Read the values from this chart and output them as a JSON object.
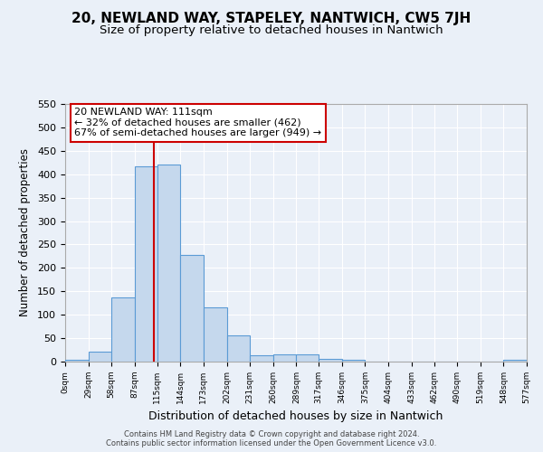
{
  "title": "20, NEWLAND WAY, STAPELEY, NANTWICH, CW5 7JH",
  "subtitle": "Size of property relative to detached houses in Nantwich",
  "xlabel": "Distribution of detached houses by size in Nantwich",
  "ylabel": "Number of detached properties",
  "bar_edges": [
    0,
    29,
    58,
    87,
    115,
    144,
    173,
    202,
    231,
    260,
    289,
    317,
    346,
    375,
    404,
    433,
    462,
    490,
    519,
    548,
    577
  ],
  "bar_heights": [
    3,
    22,
    137,
    417,
    421,
    227,
    115,
    56,
    13,
    15,
    15,
    6,
    3,
    0,
    0,
    0,
    0,
    0,
    0,
    3
  ],
  "bar_color": "#c5d8ed",
  "bar_edge_color": "#5b9bd5",
  "reference_line_x": 111,
  "reference_line_color": "#cc0000",
  "ylim": [
    0,
    550
  ],
  "yticks": [
    0,
    50,
    100,
    150,
    200,
    250,
    300,
    350,
    400,
    450,
    500,
    550
  ],
  "xtick_labels": [
    "0sqm",
    "29sqm",
    "58sqm",
    "87sqm",
    "115sqm",
    "144sqm",
    "173sqm",
    "202sqm",
    "231sqm",
    "260sqm",
    "289sqm",
    "317sqm",
    "346sqm",
    "375sqm",
    "404sqm",
    "433sqm",
    "462sqm",
    "490sqm",
    "519sqm",
    "548sqm",
    "577sqm"
  ],
  "annotation_title": "20 NEWLAND WAY: 111sqm",
  "annotation_line1": "← 32% of detached houses are smaller (462)",
  "annotation_line2": "67% of semi-detached houses are larger (949) →",
  "annotation_box_color": "#ffffff",
  "annotation_box_edge_color": "#cc0000",
  "footer_line1": "Contains HM Land Registry data © Crown copyright and database right 2024.",
  "footer_line2": "Contains public sector information licensed under the Open Government Licence v3.0.",
  "background_color": "#eaf0f8",
  "plot_background": "#eaf0f8",
  "grid_color": "#ffffff",
  "title_fontsize": 11,
  "subtitle_fontsize": 9.5
}
